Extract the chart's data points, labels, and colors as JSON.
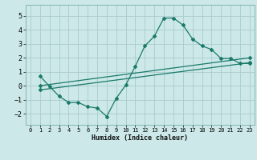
{
  "xlabel": "Humidex (Indice chaleur)",
  "ylabel": "",
  "bg_color": "#cce8e8",
  "grid_color": "#aacccc",
  "line_color": "#1a7a6a",
  "xlim": [
    -0.5,
    23.5
  ],
  "ylim": [
    -2.8,
    5.8
  ],
  "xticks": [
    0,
    1,
    2,
    3,
    4,
    5,
    6,
    7,
    8,
    9,
    10,
    11,
    12,
    13,
    14,
    15,
    16,
    17,
    18,
    19,
    20,
    21,
    22,
    23
  ],
  "yticks": [
    -2,
    -1,
    0,
    1,
    2,
    3,
    4,
    5
  ],
  "line1_x": [
    1,
    2,
    3,
    4,
    5,
    6,
    7,
    8,
    9,
    10,
    11,
    12,
    13,
    14,
    15,
    16,
    17,
    18,
    19,
    20,
    21,
    22,
    23
  ],
  "line1_y": [
    0.7,
    -0.05,
    -0.75,
    -1.2,
    -1.2,
    -1.5,
    -1.6,
    -2.2,
    -0.9,
    0.05,
    1.4,
    2.85,
    3.55,
    4.85,
    4.85,
    4.35,
    3.35,
    2.85,
    2.6,
    1.95,
    1.95,
    1.6,
    1.6
  ],
  "line2_x": [
    1,
    23
  ],
  "line2_y": [
    0.0,
    2.0
  ],
  "line3_x": [
    1,
    23
  ],
  "line3_y": [
    -0.3,
    1.65
  ]
}
